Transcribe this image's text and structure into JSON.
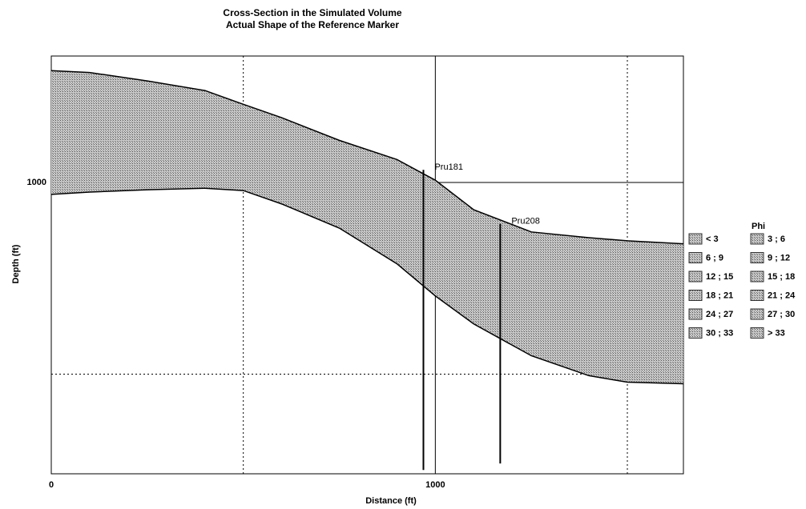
{
  "chart_data": {
    "type": "band",
    "title": "Cross-Section in the Simulated Volume",
    "subtitle": "Actual Shape of the Reference Marker",
    "x_label": "Distance (ft)",
    "y_label": "Depth (ft)",
    "x": [
      0,
      100,
      250,
      400,
      500,
      600,
      750,
      900,
      1000,
      1100,
      1250,
      1400,
      1500,
      1646
    ],
    "series": [
      {
        "name": "Top",
        "color": "#000000",
        "values": [
          970.8,
          971.3,
          973.5,
          976.0,
          979.6,
          983.1,
          989.0,
          994.0,
          999.4,
          1007.1,
          1012.9,
          1014.4,
          1015.2,
          1016.0
        ]
      },
      {
        "name": "Base",
        "color": "#000000",
        "values": [
          1003.1,
          1002.5,
          1001.9,
          1001.5,
          1002.1,
          1005.6,
          1011.9,
          1021.2,
          1029.6,
          1036.9,
          1045.2,
          1050.4,
          1052.1,
          1052.5
        ]
      }
    ],
    "fill_color": "#9a9a9a",
    "wells": [
      {
        "name": "Pru181",
        "x": 969,
        "top": 996.7,
        "bottom": 1075
      },
      {
        "name": "Pru208",
        "x": 1169,
        "top": 1010.8,
        "bottom": 1073.3
      }
    ],
    "xlim": [
      0,
      1646
    ],
    "ylim": [
      967,
      1076
    ],
    "y_inverted": true,
    "xticks": [
      0,
      1000
    ],
    "yticks": [
      1000
    ],
    "x_minor_grid": [
      500,
      1500
    ],
    "y_minor_grid": [
      1050
    ],
    "legend_title": "Phi",
    "legend": [
      "< 3",
      "3 ; 6",
      "6 ; 9",
      "9 ; 12",
      "12 ; 15",
      "15 ; 18",
      "18 ; 21",
      "21 ; 24",
      "24 ; 27",
      "27 ; 30",
      "30 ; 33",
      "> 33"
    ]
  }
}
